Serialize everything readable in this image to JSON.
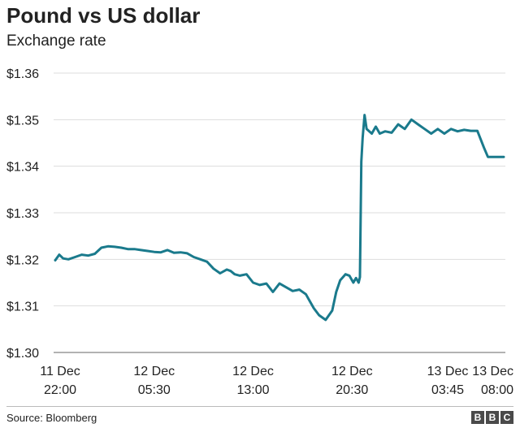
{
  "header": {
    "title": "Pound vs US dollar",
    "subtitle": "Exchange rate"
  },
  "footer": {
    "source": "Source: Bloomberg",
    "logo_letters": [
      "B",
      "B",
      "C"
    ]
  },
  "colors": {
    "line": "#1a7a8c",
    "grid": "#dddddd",
    "axis": "#999999",
    "text": "#222222"
  },
  "chart_data": {
    "type": "line",
    "title": "Pound vs US dollar",
    "subtitle": "Exchange rate",
    "xlabel": "",
    "ylabel": "",
    "ylim": [
      1.3,
      1.36
    ],
    "yticks": [
      {
        "value": 1.36,
        "label": "$1.36"
      },
      {
        "value": 1.35,
        "label": "$1.35"
      },
      {
        "value": 1.34,
        "label": "$1.34"
      },
      {
        "value": 1.33,
        "label": "$1.33"
      },
      {
        "value": 1.32,
        "label": "$1.32"
      },
      {
        "value": 1.31,
        "label": "$1.31"
      },
      {
        "value": 1.3,
        "label": "$1.30"
      }
    ],
    "xlim": [
      "11 Dec 22:00",
      "13 Dec 08:00"
    ],
    "xticks": [
      {
        "line1": "11 Dec",
        "line2": "22:00",
        "hours": 0
      },
      {
        "line1": "12 Dec",
        "line2": "05:30",
        "hours": 7.5
      },
      {
        "line1": "12 Dec",
        "line2": "13:00",
        "hours": 15
      },
      {
        "line1": "12 Dec",
        "line2": "20:30",
        "hours": 22.5
      },
      {
        "line1": "13 Dec",
        "line2": "03:45",
        "hours": 29.75
      },
      {
        "line1": "13 Dec",
        "line2": "08:00",
        "hours": 34
      }
    ],
    "grid": true,
    "series": [
      {
        "x_hours": [
          0,
          0.3,
          0.6,
          1.0,
          1.5,
          2.0,
          2.5,
          3.0,
          3.5,
          4.0,
          4.5,
          5.0,
          5.5,
          6.0,
          6.5,
          7.0,
          7.5,
          8.0,
          8.5,
          9.0,
          9.5,
          10.0,
          10.5,
          11.0,
          11.5,
          12.0,
          12.5,
          13.0,
          13.3,
          13.6,
          14.0,
          14.5,
          15.0,
          15.5,
          16.0,
          16.5,
          17.0,
          17.5,
          18.0,
          18.5,
          19.0,
          19.3,
          19.6,
          20.0,
          20.5,
          21.0,
          21.3,
          21.6,
          22.0,
          22.3,
          22.6,
          22.8,
          23.0,
          23.1,
          23.2,
          23.3,
          23.45,
          23.6,
          24.0,
          24.3,
          24.6,
          25.0,
          25.5,
          26.0,
          26.5,
          27.0,
          27.5,
          28.0,
          28.5,
          29.0,
          29.5,
          30.0,
          30.5,
          31.0,
          31.5,
          32.0,
          32.5,
          32.8,
          33.2,
          33.6,
          34.0
        ],
        "values": [
          1.3198,
          1.321,
          1.3202,
          1.32,
          1.3205,
          1.321,
          1.3208,
          1.3212,
          1.3225,
          1.3228,
          1.3227,
          1.3225,
          1.3222,
          1.3222,
          1.322,
          1.3218,
          1.3216,
          1.3215,
          1.322,
          1.3214,
          1.3215,
          1.3213,
          1.3205,
          1.32,
          1.3195,
          1.318,
          1.317,
          1.3178,
          1.3175,
          1.3168,
          1.3165,
          1.3168,
          1.315,
          1.3145,
          1.3148,
          1.313,
          1.3148,
          1.314,
          1.3132,
          1.3135,
          1.3125,
          1.311,
          1.3095,
          1.308,
          1.307,
          1.309,
          1.313,
          1.3155,
          1.3168,
          1.3165,
          1.315,
          1.316,
          1.315,
          1.3162,
          1.341,
          1.346,
          1.351,
          1.348,
          1.347,
          1.3485,
          1.347,
          1.3475,
          1.3472,
          1.349,
          1.348,
          1.35,
          1.349,
          1.348,
          1.347,
          1.348,
          1.347,
          1.348,
          1.3475,
          1.3478,
          1.3476,
          1.3476,
          1.344,
          1.342,
          1.342,
          1.342,
          1.342
        ]
      }
    ]
  }
}
